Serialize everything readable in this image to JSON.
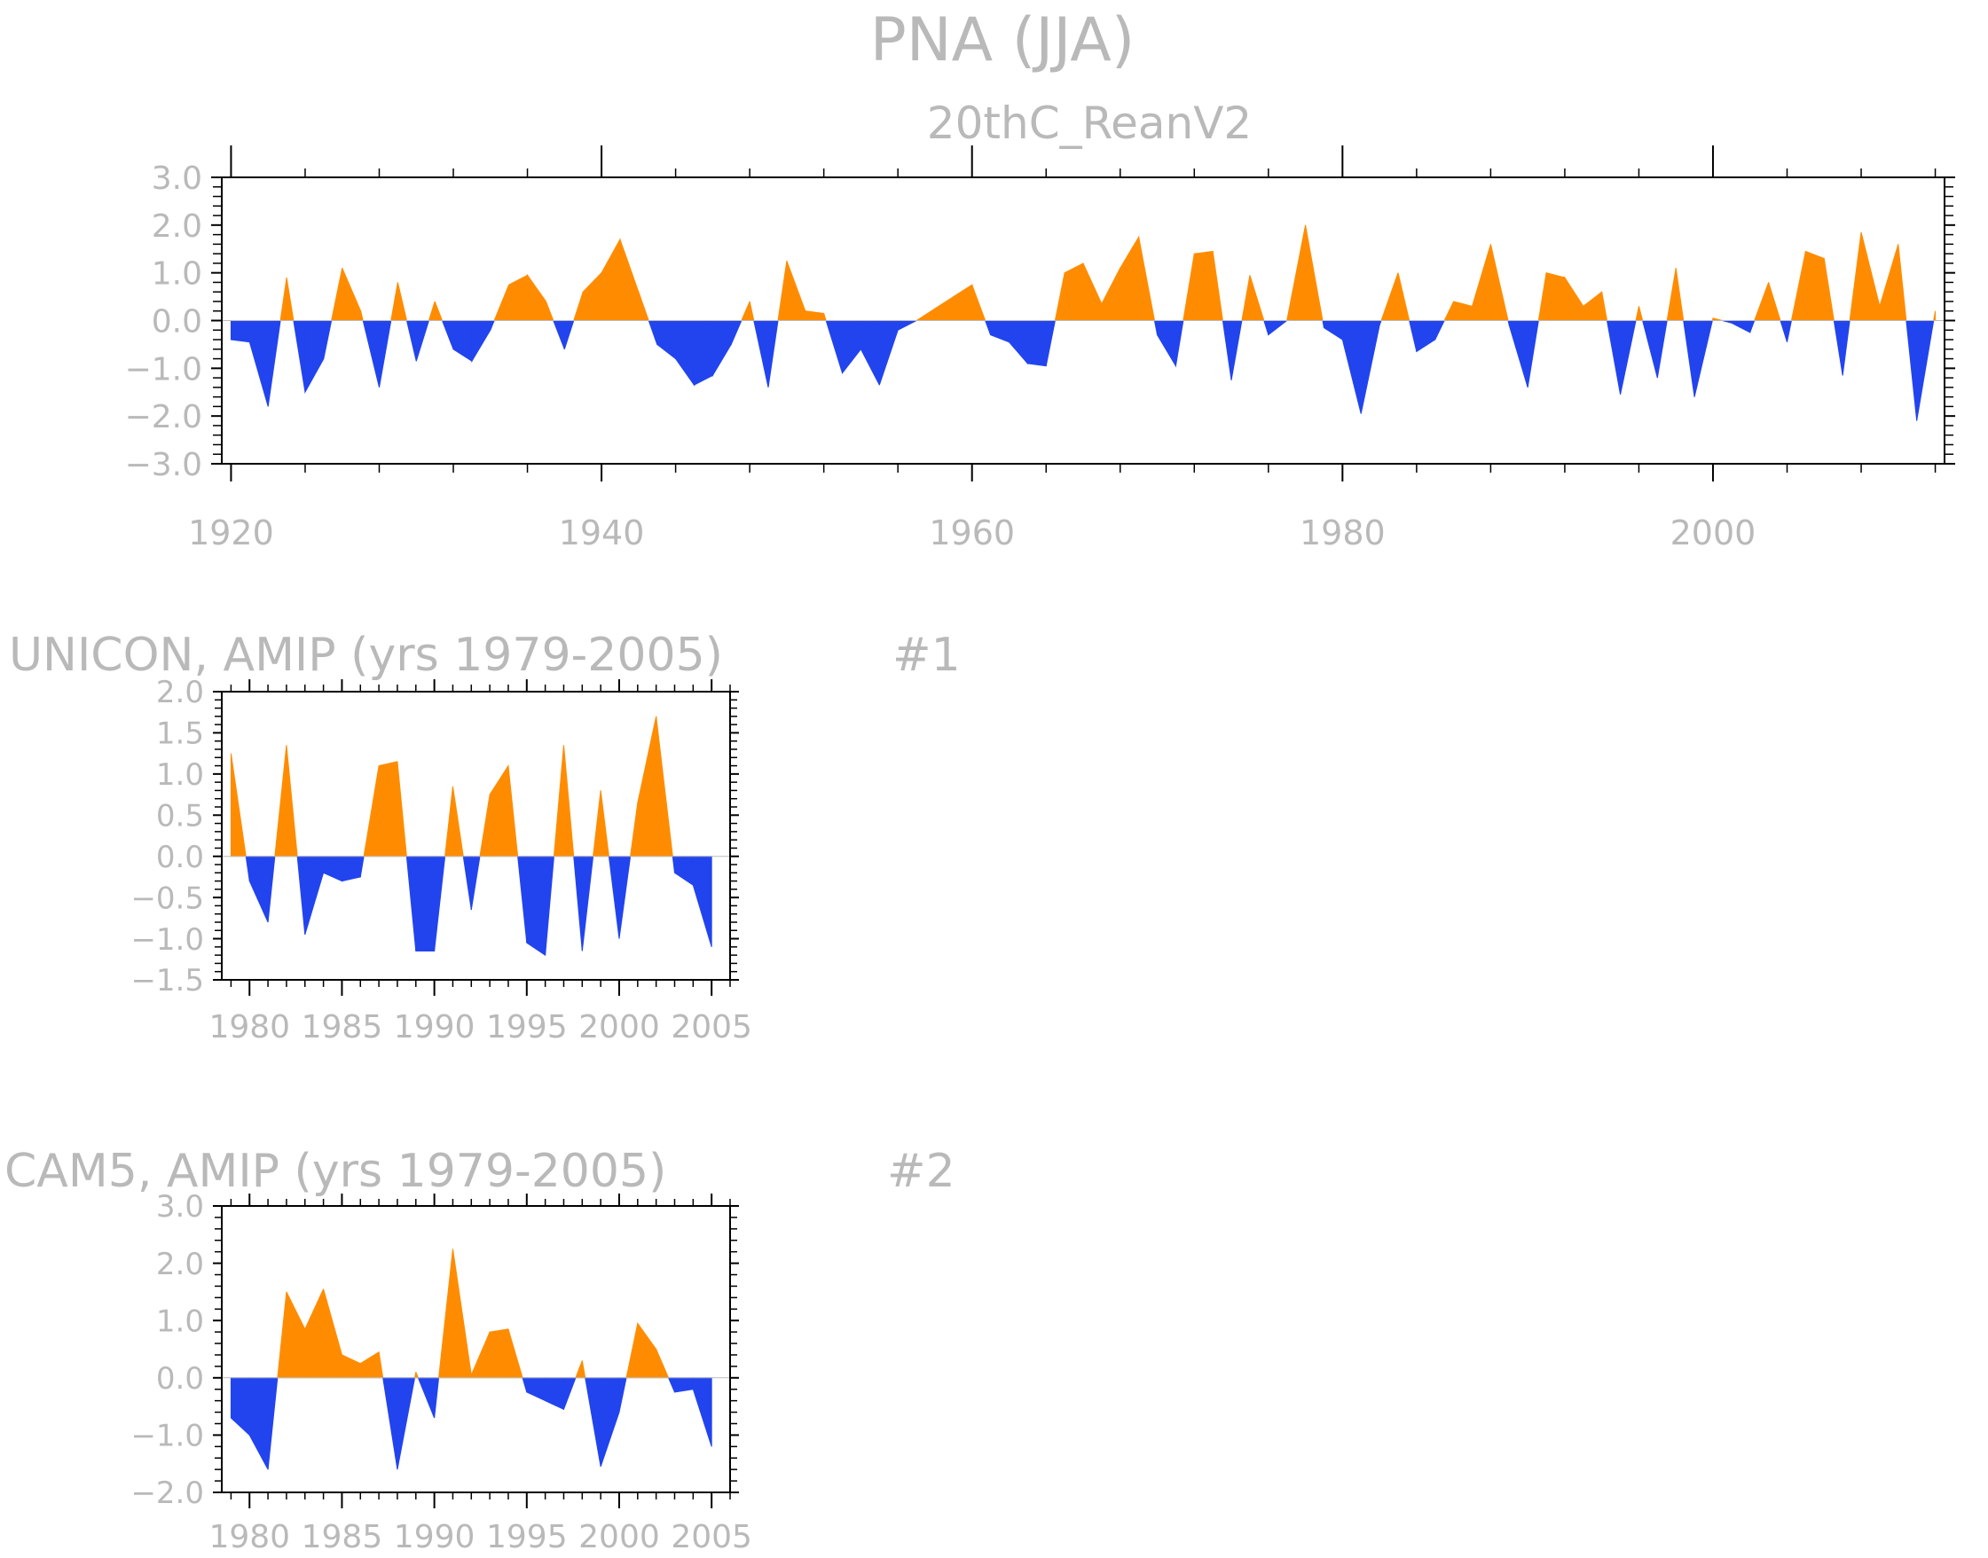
{
  "figure": {
    "title": "PNA (JJA)"
  },
  "colors": {
    "positive": "#ff8c00",
    "negative": "#2244ee",
    "axis": "#000000",
    "text": "#b9b9b9"
  },
  "chart_data": [
    {
      "type": "area",
      "subtitle": "20thC_ReanV2",
      "panel_label": "",
      "ylim": [
        -3,
        3
      ],
      "xlim": [
        1919.5,
        2012.5
      ],
      "yticks": [
        -3,
        -2,
        -1,
        0,
        1,
        2,
        3
      ],
      "ytick_labels": [
        "−3.0",
        "−2.0",
        "−1.0",
        "0.0",
        "1.0",
        "2.0",
        "3.0"
      ],
      "xticks": [
        1920,
        1940,
        1960,
        1980,
        2000
      ],
      "xtick_labels": [
        "1920",
        "1940",
        "1960",
        "1980",
        "2000"
      ],
      "x_start": 1920,
      "values": [
        -0.4,
        -0.45,
        -1.8,
        0.9,
        -1.5,
        -0.8,
        1.1,
        0.2,
        -1.4,
        0.8,
        -0.85,
        0.4,
        -0.6,
        -0.85,
        -0.2,
        0.75,
        0.95,
        0.4,
        -0.6,
        0.6,
        1.0,
        1.7,
        0.6,
        -0.5,
        -0.8,
        -1.35,
        -1.15,
        -0.5,
        0.4,
        -1.4,
        1.25,
        0.2,
        0.15,
        -1.1,
        -0.6,
        -1.35,
        -0.2,
        0.0,
        0.25,
        0.5,
        0.75,
        -0.3,
        -0.45,
        -0.9,
        -0.95,
        1.0,
        1.2,
        0.35,
        1.1,
        1.75,
        -0.3,
        -0.95,
        1.4,
        1.45,
        -1.25,
        0.95,
        -0.3,
        0.0,
        2.0,
        -0.15,
        -0.4,
        -1.95,
        -0.1,
        1.0,
        -0.65,
        -0.4,
        0.4,
        0.3,
        1.6,
        -0.1,
        -1.4,
        1.0,
        0.9,
        0.3,
        0.6,
        -1.55,
        0.3,
        -1.2,
        1.1,
        -1.6,
        0.05,
        -0.05,
        -0.25,
        0.8,
        -0.45,
        1.45,
        1.3,
        -1.15,
        1.85,
        0.3,
        1.6,
        -2.1,
        0.2
      ]
    },
    {
      "type": "area",
      "subtitle": "UNICON, AMIP (yrs 1979-2005)",
      "panel_label": "#1",
      "ylim": [
        -1.5,
        2.0
      ],
      "xlim": [
        1978.5,
        2006
      ],
      "yticks": [
        -1.5,
        -1.0,
        -0.5,
        0.0,
        0.5,
        1.0,
        1.5,
        2.0
      ],
      "ytick_labels": [
        "−1.5",
        "−1.0",
        "−0.5",
        "0.0",
        "0.5",
        "1.0",
        "1.5",
        "2.0"
      ],
      "xticks": [
        1980,
        1985,
        1990,
        1995,
        2000,
        2005
      ],
      "xtick_labels": [
        "1980",
        "1985",
        "1990",
        "1995",
        "2000",
        "2005"
      ],
      "x_start": 1979,
      "values": [
        1.25,
        -0.3,
        -0.8,
        1.35,
        -0.95,
        -0.2,
        -0.3,
        -0.25,
        1.1,
        1.15,
        -1.15,
        -1.15,
        0.85,
        -0.65,
        0.75,
        1.1,
        -1.05,
        -1.2,
        1.35,
        -1.15,
        0.8,
        -1.0,
        0.65,
        1.7,
        -0.2,
        -0.35,
        -1.1
      ]
    },
    {
      "type": "area",
      "subtitle": "CAM5, AMIP (yrs 1979-2005)",
      "panel_label": "#2",
      "ylim": [
        -2.0,
        3.0
      ],
      "xlim": [
        1978.5,
        2006
      ],
      "yticks": [
        -2,
        -1,
        0,
        1,
        2,
        3
      ],
      "ytick_labels": [
        "−2.0",
        "−1.0",
        "0.0",
        "1.0",
        "2.0",
        "3.0"
      ],
      "xticks": [
        1980,
        1985,
        1990,
        1995,
        2000,
        2005
      ],
      "xtick_labels": [
        "1980",
        "1985",
        "1990",
        "1995",
        "2000",
        "2005"
      ],
      "x_start": 1979,
      "values": [
        -0.7,
        -1.0,
        -1.6,
        1.5,
        0.85,
        1.55,
        0.4,
        0.25,
        0.45,
        -1.6,
        0.1,
        -0.7,
        2.25,
        0.05,
        0.8,
        0.85,
        -0.25,
        -0.4,
        -0.55,
        0.3,
        -1.55,
        -0.6,
        0.95,
        0.5,
        -0.25,
        -0.2,
        -1.2
      ]
    }
  ]
}
